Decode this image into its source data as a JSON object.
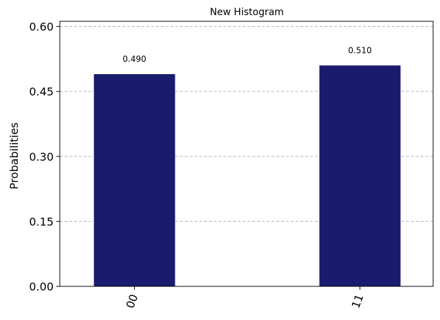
{
  "chart_data": {
    "type": "bar",
    "title": "New Histogram",
    "xlabel": "",
    "ylabel": "Probabilities",
    "categories": [
      "00",
      "11"
    ],
    "values": [
      0.49,
      0.51
    ],
    "value_labels": [
      "0.490",
      "0.510"
    ],
    "ylim": [
      0,
      0.612
    ],
    "yticks": [
      0.0,
      0.15,
      0.3,
      0.45,
      0.6
    ],
    "ytick_labels": [
      "0.00",
      "0.15",
      "0.30",
      "0.45",
      "0.60"
    ],
    "grid": "y-dashed",
    "bar_color": "#1a1a6e"
  }
}
